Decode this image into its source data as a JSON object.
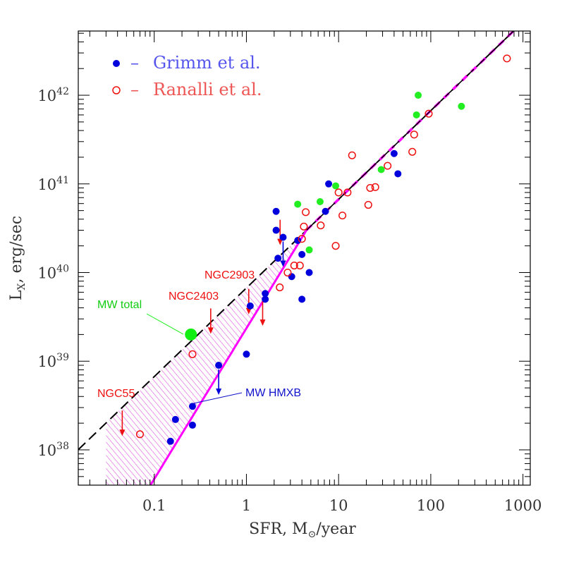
{
  "chart_data": {
    "type": "scatter",
    "title": "",
    "x_scale": "log",
    "y_scale": "log",
    "xlim": [
      0.015,
      1200
    ],
    "ylim": [
      4e+37,
      5.3e+42
    ],
    "x_ticks": [
      0.1,
      1,
      10,
      100,
      1000
    ],
    "x_tick_labels": [
      "0.1",
      "1",
      "10",
      "100",
      "1000"
    ],
    "y_tick_exponents": [
      38,
      39,
      40,
      41,
      42
    ],
    "y_tick_base": "10",
    "xlabel": {
      "main": "SFR,  M",
      "sub": "⊙",
      "tail": "/year"
    },
    "ylabel": {
      "main": "L",
      "sub": "X",
      "tail": ",  erg/sec"
    },
    "legend": [
      {
        "symbol": "•",
        "dash": "–",
        "label": "Grimm et al.",
        "color": "#0000dd",
        "text_color": "#5555ee",
        "filled": true
      },
      {
        "symbol": "○",
        "dash": "–",
        "label": "Ranalli et al.",
        "color": "#ee1111",
        "text_color": "#ee5555",
        "filled": false
      }
    ],
    "series": [
      {
        "name": "Grimm et al.",
        "marker": "filled-circle",
        "color": "#0000dd",
        "points": [
          [
            0.15,
            1.25e+38
          ],
          [
            0.17,
            2.2e+38
          ],
          [
            0.26,
            1.9e+38
          ],
          [
            0.26,
            3.1e+38
          ],
          [
            0.5,
            9e+38
          ],
          [
            1.0,
            1.2e+39
          ],
          [
            1.1,
            4.2e+39
          ],
          [
            1.6,
            5e+39
          ],
          [
            1.6,
            5.8e+39
          ],
          [
            2.1,
            3e+40
          ],
          [
            2.1,
            4.9e+40
          ],
          [
            2.2,
            1.45e+40
          ],
          [
            2.5,
            2.5e+40
          ],
          [
            3.1,
            9e+39
          ],
          [
            3.6,
            2.3e+40
          ],
          [
            4.0,
            5e+39
          ],
          [
            4.0,
            1.6e+40
          ],
          [
            4.8,
            1e+40
          ],
          [
            7.2,
            4.9e+40
          ],
          [
            7.8,
            1e+41
          ],
          [
            40,
            2.2e+41
          ],
          [
            44,
            1.3e+41
          ]
        ]
      },
      {
        "name": "Ranalli et al.",
        "marker": "open-circle",
        "color": "#ee1111",
        "points": [
          [
            0.07,
            1.5e+38
          ],
          [
            0.26,
            1.2e+39
          ],
          [
            2.3,
            6.8e+39
          ],
          [
            2.8,
            1e+40
          ],
          [
            3.3,
            1.2e+40
          ],
          [
            3.8,
            1.2e+40
          ],
          [
            4.0,
            2.4e+40
          ],
          [
            4.2,
            3.3e+40
          ],
          [
            4.4,
            4.8e+40
          ],
          [
            6.4,
            3.4e+40
          ],
          [
            9.3,
            2e+40
          ],
          [
            10,
            8e+40
          ],
          [
            11,
            4.4e+40
          ],
          [
            12.5,
            8e+40
          ],
          [
            14,
            2.1e+41
          ],
          [
            21,
            5.8e+40
          ],
          [
            22,
            9e+40
          ],
          [
            25,
            9.2e+40
          ],
          [
            34,
            1.6e+41
          ],
          [
            63,
            2.3e+41
          ],
          [
            66,
            3.6e+41
          ],
          [
            95,
            6.2e+41
          ],
          [
            670,
            2.6e+42
          ]
        ]
      },
      {
        "name": "",
        "marker": "filled-circle",
        "color": "#22ee22",
        "points": [
          [
            3.6,
            5.9e+40
          ],
          [
            4.8,
            1.8e+40
          ],
          [
            6.3,
            6.3e+40
          ],
          [
            9.3,
            9.5e+40
          ],
          [
            29,
            1.45e+41
          ],
          [
            70,
            6e+41
          ],
          [
            73,
            1e+42
          ],
          [
            215,
            7.5e+41
          ]
        ]
      }
    ],
    "upper_limits": [
      {
        "x": 0.045,
        "y": 3.1e+38,
        "color": "#ee1111",
        "marker": "open-circle"
      },
      {
        "x": 0.41,
        "y": 4.4e+39,
        "color": "#ee1111",
        "marker": "open-circle"
      },
      {
        "x": 1.06,
        "y": 7.3e+39,
        "color": "#ee1111",
        "marker": "open-circle"
      },
      {
        "x": 1.5,
        "y": 5.4e+39,
        "color": "#ee1111",
        "marker": "open-circle"
      },
      {
        "x": 2.32,
        "y": 4.4e+40,
        "color": "#ee1111",
        "marker": "open-circle"
      },
      {
        "x": 2.5,
        "y": 2.5e+40,
        "color": "#0000dd",
        "marker": "filled-circle"
      },
      {
        "x": 0.5,
        "y": 9e+38,
        "color": "#0000dd",
        "marker": "filled-circle"
      }
    ],
    "mw_total_point": {
      "x": 0.25,
      "y": 2e+39,
      "color": "#11ee11"
    },
    "lines": {
      "linear": {
        "style": "dashed",
        "color": "#000000",
        "coef": 6.7e+39,
        "slope": 1.0
      },
      "nonlinear": {
        "style": "solid",
        "color": "#ff00ff",
        "coef": 2.35e+39,
        "slope": 1.7,
        "break_sfr": 4.5
      },
      "band": {
        "color": "#dd44dd",
        "style": "hatched"
      }
    },
    "annotations": [
      {
        "text": "NGC55",
        "color": "#ee1111"
      },
      {
        "text": "NGC2403",
        "color": "#ee1111"
      },
      {
        "text": "NGC2903",
        "color": "#ee1111"
      },
      {
        "text": "MW total",
        "color": "#11cc11"
      },
      {
        "text": "MW HMXB",
        "color": "#1111cc"
      }
    ]
  }
}
